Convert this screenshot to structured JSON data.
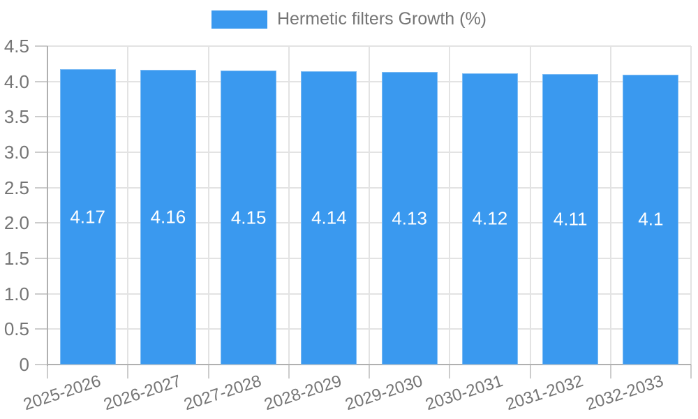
{
  "chart_data": {
    "type": "bar",
    "legend_label": "Hermetic filters Growth (%)",
    "categories": [
      "2025-2026",
      "2026-2027",
      "2027-2028",
      "2028-2029",
      "2029-2030",
      "2030-2031",
      "2031-2032",
      "2032-2033"
    ],
    "values": [
      4.17,
      4.16,
      4.15,
      4.14,
      4.13,
      4.12,
      4.11,
      4.1
    ],
    "value_labels": [
      "4.17",
      "4.16",
      "4.15",
      "4.14",
      "4.13",
      "4.12",
      "4.11",
      "4.1"
    ],
    "xlabel": "",
    "ylabel": "",
    "ylim": [
      0,
      4.5
    ],
    "ytick_step": 0.5,
    "ytick_labels": [
      "0",
      "0.5",
      "1.0",
      "1.5",
      "2.0",
      "2.5",
      "3.0",
      "3.5",
      "4.0",
      "4.5"
    ],
    "grid": true,
    "legend_position": "top-center",
    "colors": {
      "bar": "#3A99EF",
      "grid": "#e3e3e3",
      "axis": "#b0b0b0",
      "tick": "#cccccc",
      "tick_label": "#757575",
      "value_label": "#ffffff"
    }
  }
}
